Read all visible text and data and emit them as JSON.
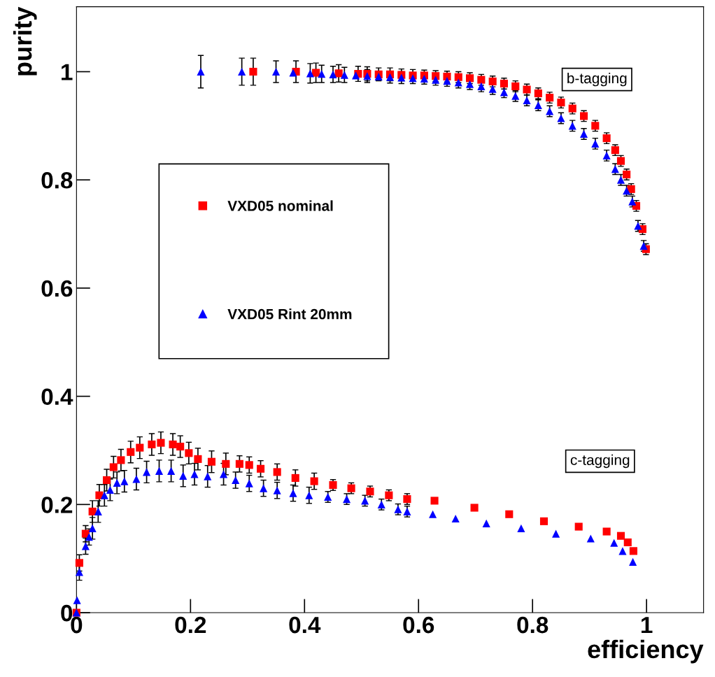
{
  "chart_data": {
    "type": "scatter",
    "xlabel": "efficiency",
    "ylabel": "purity",
    "xlim": [
      0,
      1.1
    ],
    "ylim": [
      0,
      1.12
    ],
    "xticks": [
      0,
      0.2,
      0.4,
      0.6,
      0.8,
      1
    ],
    "yticks": [
      0,
      0.2,
      0.4,
      0.6,
      0.8,
      1
    ],
    "legend": "center left",
    "grid": false,
    "series": [
      {
        "name": "VXD05 nominal",
        "color": "#ff0000",
        "marker": "square",
        "x": [
          0,
          0.005,
          0.016,
          0.028,
          0.04,
          0.053,
          0.065,
          0.078,
          0.095,
          0.111,
          0.132,
          0.148,
          0.169,
          0.182,
          0.197,
          0.213,
          0.237,
          0.262,
          0.286,
          0.303,
          0.323,
          0.352,
          0.384,
          0.417,
          0.45,
          0.482,
          0.515,
          0.548,
          0.58,
          0.628,
          0.698,
          0.759,
          0.82,
          0.881,
          0.93,
          0.955,
          0.967,
          0.977,
          0.31,
          0.385,
          0.42,
          0.46,
          0.494,
          0.51,
          0.53,
          0.55,
          0.57,
          0.59,
          0.61,
          0.63,
          0.65,
          0.67,
          0.69,
          0.71,
          0.73,
          0.75,
          0.77,
          0.79,
          0.81,
          0.83,
          0.85,
          0.87,
          0.89,
          0.91,
          0.93,
          0.945,
          0.955,
          0.965,
          0.973,
          0.982,
          0.993,
          0.999
        ],
        "values": [
          0,
          0.092,
          0.146,
          0.187,
          0.217,
          0.245,
          0.269,
          0.282,
          0.297,
          0.305,
          0.311,
          0.314,
          0.311,
          0.307,
          0.295,
          0.284,
          0.279,
          0.275,
          0.275,
          0.273,
          0.266,
          0.26,
          0.249,
          0.243,
          0.236,
          0.23,
          0.224,
          0.217,
          0.21,
          0.207,
          0.194,
          0.182,
          0.169,
          0.159,
          0.15,
          0.142,
          0.13,
          0.114,
          1.0,
          1.0,
          0.998,
          0.997,
          0.996,
          0.996,
          0.995,
          0.995,
          0.994,
          0.993,
          0.993,
          0.992,
          0.991,
          0.99,
          0.988,
          0.985,
          0.982,
          0.978,
          0.973,
          0.967,
          0.96,
          0.952,
          0.943,
          0.932,
          0.918,
          0.9,
          0.877,
          0.855,
          0.835,
          0.81,
          0.783,
          0.752,
          0.709,
          0.672
        ],
        "errors": [
          0,
          0.015,
          0.015,
          0.02,
          0.02,
          0.02,
          0.02,
          0.02,
          0.02,
          0.02,
          0.02,
          0.02,
          0.02,
          0.02,
          0.02,
          0.02,
          0.02,
          0.02,
          0.015,
          0.015,
          0.015,
          0.015,
          0.015,
          0.015,
          0.01,
          0.01,
          0.01,
          0.01,
          0.01,
          null,
          null,
          null,
          null,
          null,
          null,
          null,
          null,
          null,
          0.025,
          0.02,
          0.018,
          0.016,
          0.014,
          0.013,
          0.012,
          0.012,
          0.011,
          0.011,
          0.01,
          0.01,
          0.01,
          0.01,
          0.01,
          0.01,
          0.01,
          0.01,
          0.01,
          0.01,
          0.01,
          0.01,
          0.01,
          0.01,
          0.01,
          0.01,
          0.01,
          0.01,
          0.01,
          0.01,
          0.01,
          0.01,
          0.01,
          0.01
        ]
      },
      {
        "name": "VXD05 Rint 20mm",
        "color": "#0000ff",
        "marker": "triangle",
        "x": [
          0,
          0.001,
          0.005,
          0.016,
          0.022,
          0.028,
          0.038,
          0.049,
          0.059,
          0.071,
          0.084,
          0.105,
          0.123,
          0.145,
          0.166,
          0.187,
          0.207,
          0.23,
          0.258,
          0.279,
          0.303,
          0.328,
          0.352,
          0.38,
          0.408,
          0.441,
          0.474,
          0.506,
          0.535,
          0.564,
          0.58,
          0.625,
          0.665,
          0.719,
          0.78,
          0.841,
          0.902,
          0.943,
          0.958,
          0.976,
          0.218,
          0.29,
          0.35,
          0.38,
          0.41,
          0.43,
          0.45,
          0.47,
          0.49,
          0.51,
          0.53,
          0.55,
          0.57,
          0.59,
          0.61,
          0.63,
          0.65,
          0.67,
          0.69,
          0.71,
          0.73,
          0.75,
          0.77,
          0.79,
          0.81,
          0.83,
          0.85,
          0.87,
          0.89,
          0.91,
          0.93,
          0.945,
          0.955,
          0.965,
          0.975,
          0.985,
          0.995
        ],
        "values": [
          0,
          0.023,
          0.075,
          0.123,
          0.14,
          0.156,
          0.187,
          0.217,
          0.227,
          0.24,
          0.243,
          0.247,
          0.26,
          0.262,
          0.262,
          0.253,
          0.256,
          0.252,
          0.256,
          0.245,
          0.239,
          0.23,
          0.226,
          0.221,
          0.217,
          0.214,
          0.21,
          0.207,
          0.2,
          0.191,
          0.187,
          0.182,
          0.174,
          0.165,
          0.156,
          0.146,
          0.137,
          0.129,
          0.114,
          0.094,
          1.0,
          1.0,
          1.0,
          0.998,
          0.997,
          0.996,
          0.995,
          0.994,
          0.993,
          0.992,
          0.991,
          0.99,
          0.989,
          0.988,
          0.987,
          0.985,
          0.983,
          0.98,
          0.977,
          0.973,
          0.968,
          0.962,
          0.955,
          0.947,
          0.938,
          0.927,
          0.914,
          0.9,
          0.885,
          0.867,
          0.845,
          0.82,
          0.8,
          0.78,
          0.76,
          0.715,
          0.678
        ],
        "errors": [
          0,
          null,
          0.015,
          0.015,
          0.015,
          0.02,
          0.02,
          0.02,
          0.02,
          0.02,
          0.02,
          0.02,
          0.02,
          0.02,
          0.02,
          0.02,
          0.02,
          0.02,
          0.02,
          0.015,
          0.015,
          0.015,
          0.015,
          0.015,
          0.015,
          0.01,
          0.01,
          0.01,
          0.01,
          0.01,
          0.01,
          null,
          null,
          null,
          null,
          null,
          null,
          null,
          null,
          null,
          0.03,
          0.025,
          0.02,
          null,
          0.018,
          0.016,
          0.015,
          0.014,
          null,
          0.012,
          null,
          0.011,
          0.011,
          0.01,
          0.01,
          0.01,
          0.01,
          0.01,
          0.01,
          0.01,
          0.01,
          0.01,
          0.01,
          0.01,
          0.01,
          0.01,
          0.01,
          0.01,
          0.01,
          0.01,
          0.01,
          0.01,
          0.01,
          0.01,
          0.01,
          0.01,
          0.01
        ]
      }
    ],
    "annotations": [
      "b-tagging",
      "c-tagging"
    ]
  }
}
